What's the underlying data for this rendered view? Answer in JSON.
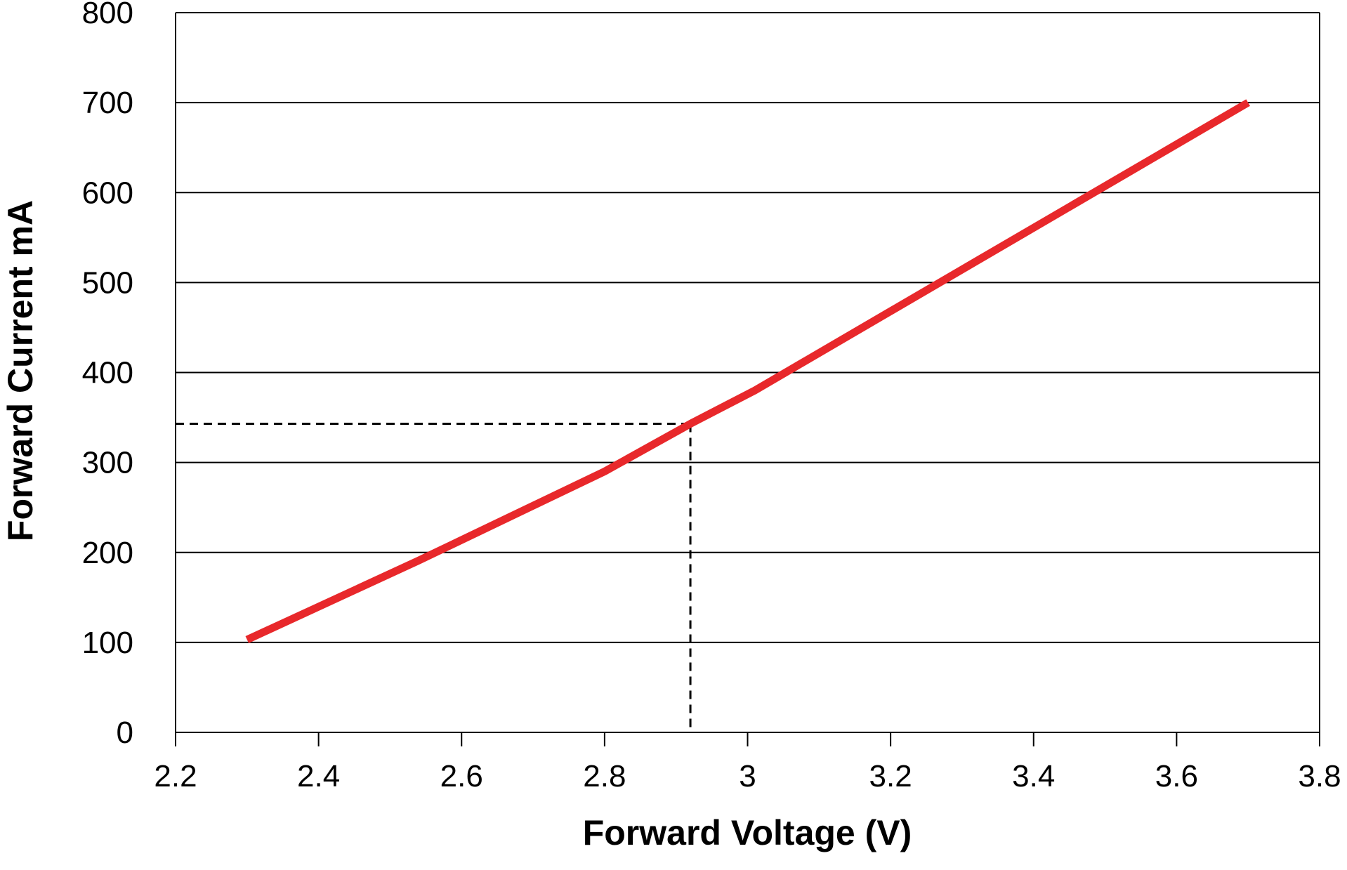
{
  "chart_data": {
    "type": "line",
    "x_label": "Forward Voltage (V)",
    "y_label": "Forward Current mA",
    "series": [
      {
        "name": null,
        "color": "#e8282b",
        "x": [
          2.3,
          2.54,
          2.8,
          2.92,
          3.01,
          3.7
        ],
        "values": [
          103,
          191,
          290,
          343,
          380,
          700
        ]
      }
    ],
    "reference": {
      "x": 2.92,
      "y": 343
    },
    "xlim": [
      2.2,
      3.8
    ],
    "xticks": [
      2.2,
      2.4,
      2.6,
      2.8,
      3,
      3.2,
      3.4,
      3.6,
      3.8
    ],
    "ylim": [
      0,
      800
    ],
    "yticks": [
      0,
      100,
      200,
      300,
      400,
      500,
      600,
      700,
      800
    ],
    "grid": true
  }
}
